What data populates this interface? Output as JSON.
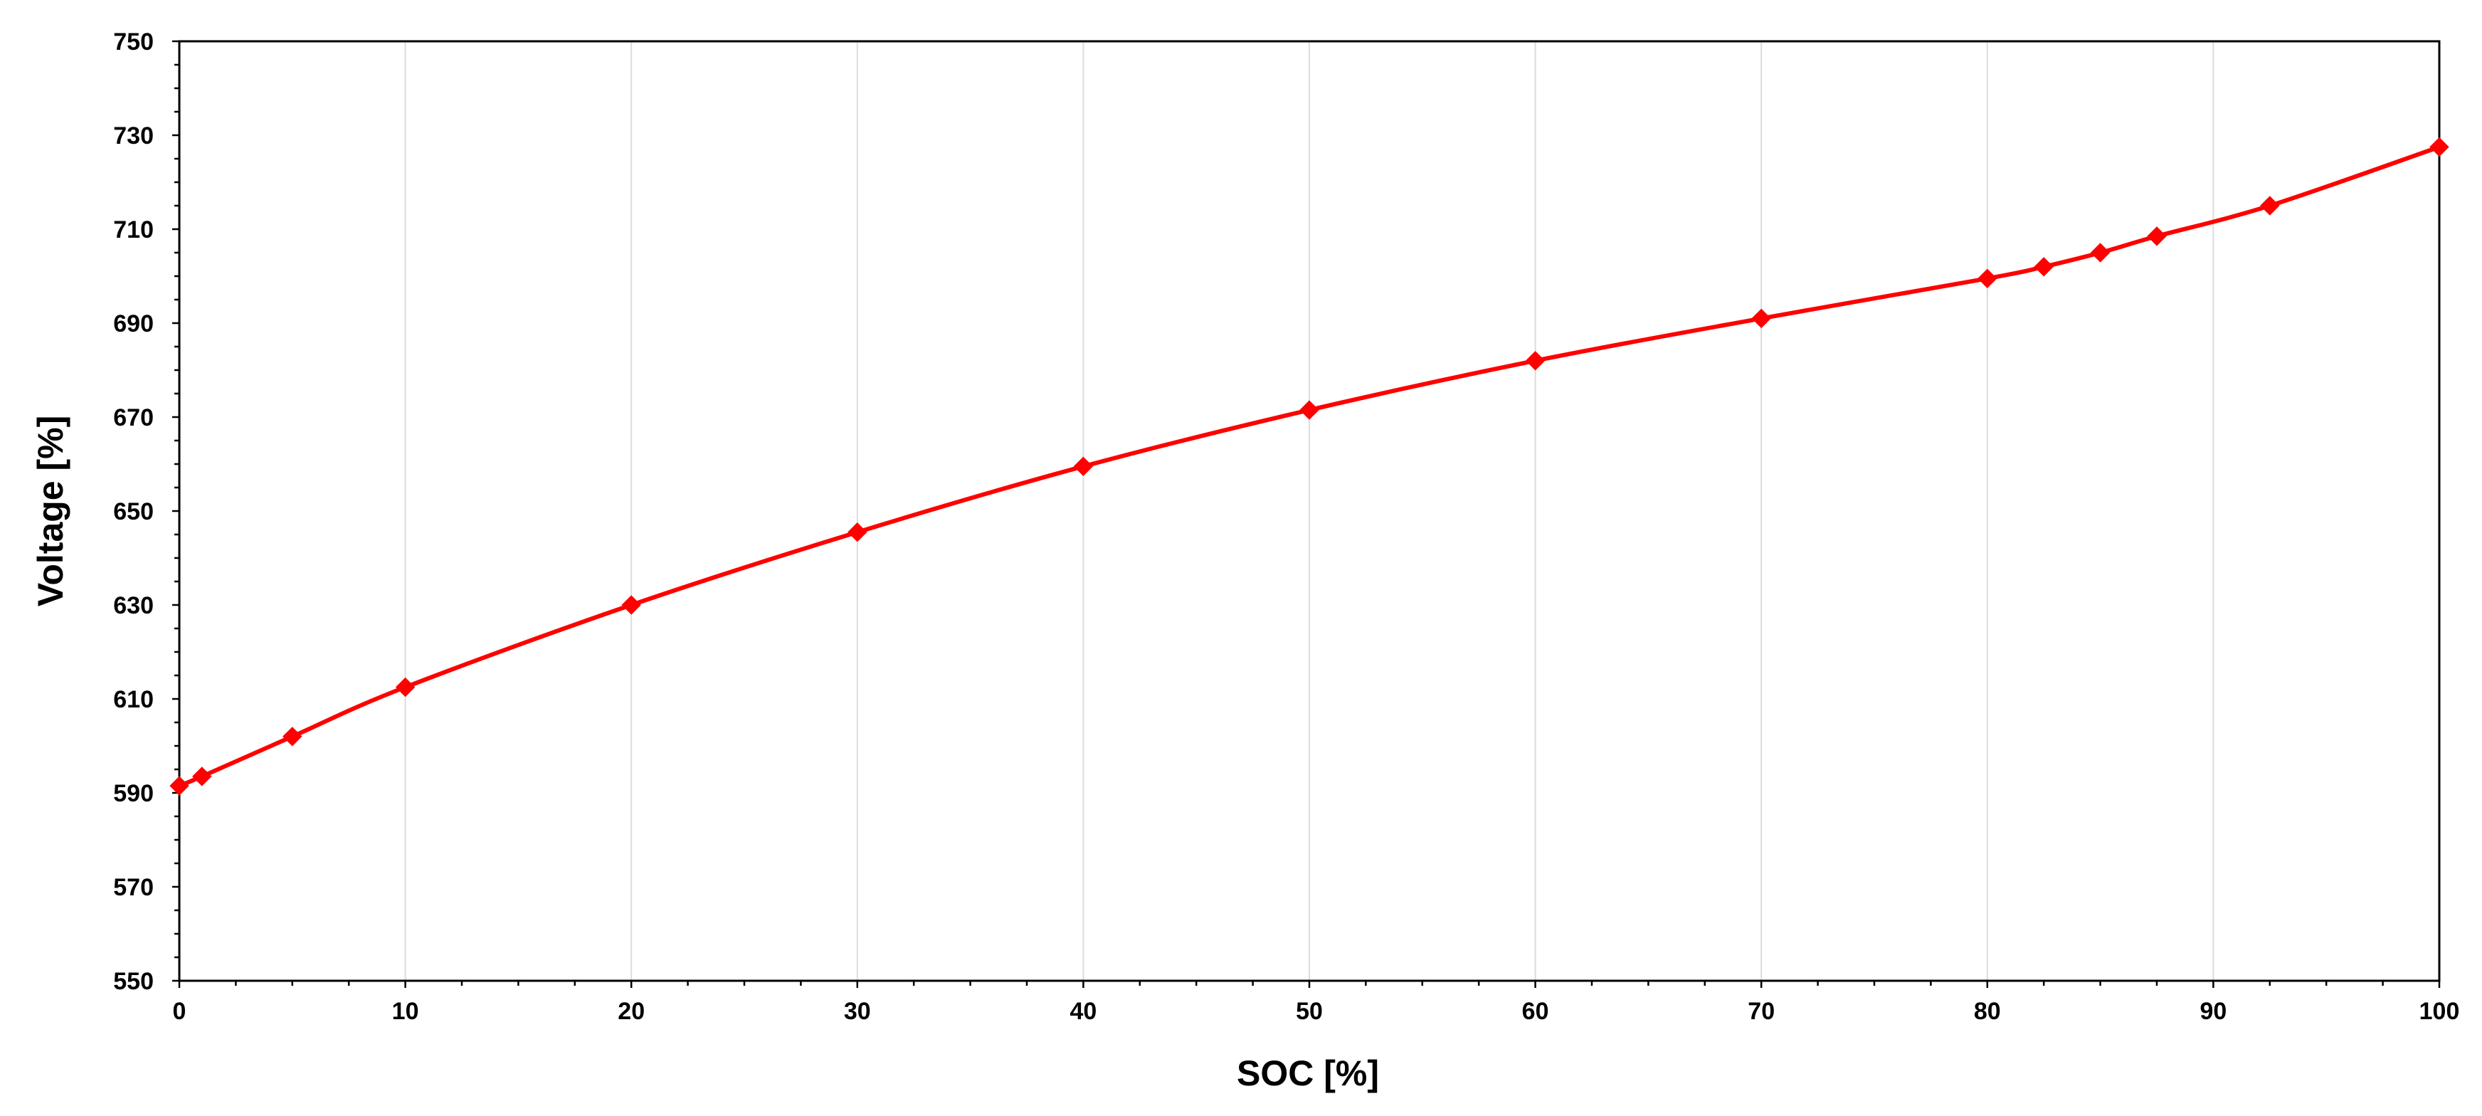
{
  "chart_data": {
    "type": "line",
    "title": "",
    "xlabel": "SOC [%]",
    "ylabel": "Voltage [%]",
    "xlim": [
      0,
      100
    ],
    "ylim": [
      550,
      750
    ],
    "x_ticks": [
      0,
      10,
      20,
      30,
      40,
      50,
      60,
      70,
      80,
      90,
      100
    ],
    "y_ticks": [
      550,
      570,
      590,
      610,
      630,
      650,
      670,
      690,
      710,
      730,
      750
    ],
    "grid": "vertical",
    "legend": "none",
    "series": [
      {
        "color": "#ff0000",
        "marker": "diamond",
        "x": [
          0,
          1,
          5,
          10,
          20,
          30,
          40,
          50,
          60,
          70,
          80,
          82.5,
          85,
          87.5,
          92.5,
          100
        ],
        "y": [
          591.5,
          593.5,
          602,
          612.5,
          630,
          645.5,
          659.5,
          671.5,
          682,
          691,
          699.5,
          702,
          705,
          708.5,
          715,
          727.5
        ]
      }
    ]
  }
}
